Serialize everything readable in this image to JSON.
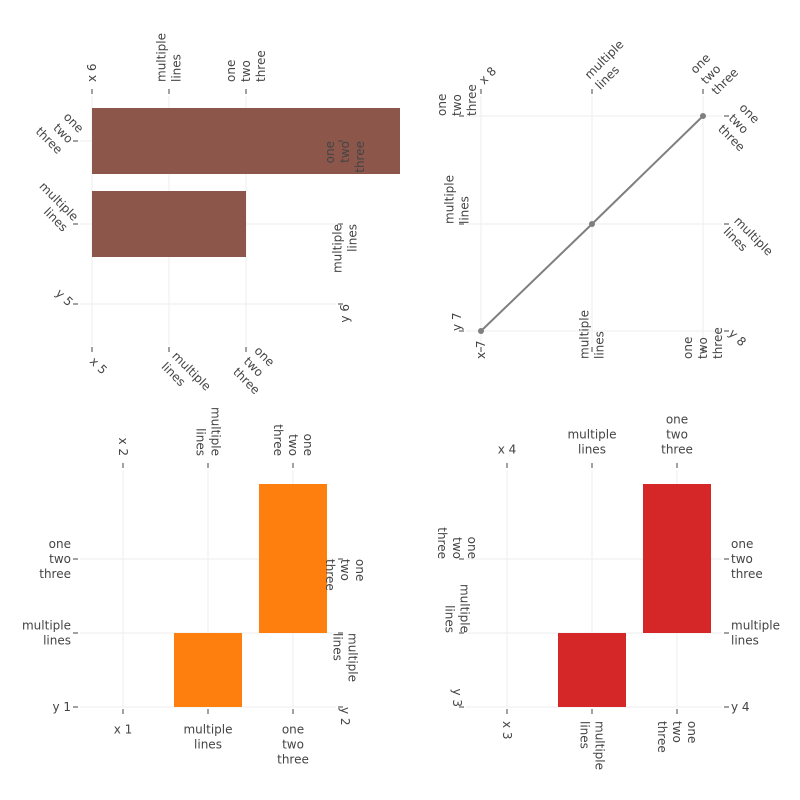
{
  "chart_data": [
    {
      "panel": "bottom-left",
      "type": "bar",
      "color": "#ff7f0e",
      "x_bottom_ticks": [
        "x 1",
        "multiple\nlines",
        "one\ntwo\nthree"
      ],
      "x_top_ticks": [
        "x 2",
        "multiple\nlines",
        "one\ntwo\nthree"
      ],
      "y_left_ticks": [
        "y 1",
        "multiple\nlines",
        "one\ntwo\nthree"
      ],
      "y_right_ticks": [
        "y 2",
        "multiple\nlines",
        "one\ntwo\nthree"
      ],
      "bars": [
        {
          "x": "multiple\nlines",
          "y": "multiple\nlines"
        },
        {
          "x": "one\ntwo\nthree",
          "y": "one\ntwo\nthree"
        }
      ]
    },
    {
      "panel": "bottom-right",
      "type": "bar",
      "color": "#d62728",
      "x_bottom_ticks": [
        "x 3",
        "multiple\nlines",
        "one\ntwo\nthree"
      ],
      "x_top_ticks": [
        "x 4",
        "multiple\nlines",
        "one\ntwo\nthree"
      ],
      "y_left_ticks": [
        "y 3",
        "multiple\nlines",
        "one\ntwo\nthree"
      ],
      "y_right_ticks": [
        "y 4",
        "multiple\nlines",
        "one\ntwo\nthree"
      ],
      "bars": [
        {
          "x": "multiple\nlines",
          "y": "multiple\nlines"
        },
        {
          "x": "one\ntwo\nthree",
          "y": "one\ntwo\nthree"
        }
      ]
    },
    {
      "panel": "top-left",
      "type": "bar",
      "orientation": "horizontal",
      "color": "#8c564b",
      "x_bottom_ticks": [
        "x 5",
        "multiple\nlines",
        "one\ntwo\nthree"
      ],
      "x_top_ticks": [
        "x 6",
        "multiple\nlines",
        "one\ntwo\nthree"
      ],
      "y_left_ticks": [
        "y 5",
        "multiple\nlines",
        "one\ntwo\nthree"
      ],
      "y_right_ticks": [
        "y 6",
        "multiple\nlines",
        "one\ntwo\nthree"
      ],
      "bars": [
        {
          "y": "multiple\nlines",
          "x": "multiple\nlines"
        },
        {
          "y": "one\ntwo\nthree",
          "x": "one\ntwo\nthree"
        }
      ]
    },
    {
      "panel": "top-right",
      "type": "line",
      "color": "#7f7f7f",
      "x_bottom_ticks": [
        "x 7",
        "multiple\nlines",
        "one\ntwo\nthree"
      ],
      "x_top_ticks": [
        "x 8",
        "multiple\nlines",
        "one\ntwo\nthree"
      ],
      "y_left_ticks": [
        "y 7",
        "multiple\nlines",
        "one\ntwo\nthree"
      ],
      "y_right_ticks": [
        "y 8",
        "multiple\nlines",
        "one\ntwo\nthree"
      ],
      "points": [
        {
          "x": "x 7",
          "y": "y 7"
        },
        {
          "x": "multiple\nlines",
          "y": "multiple\nlines"
        },
        {
          "x": "one\ntwo\nthree",
          "y": "one\ntwo\nthree"
        }
      ]
    }
  ]
}
